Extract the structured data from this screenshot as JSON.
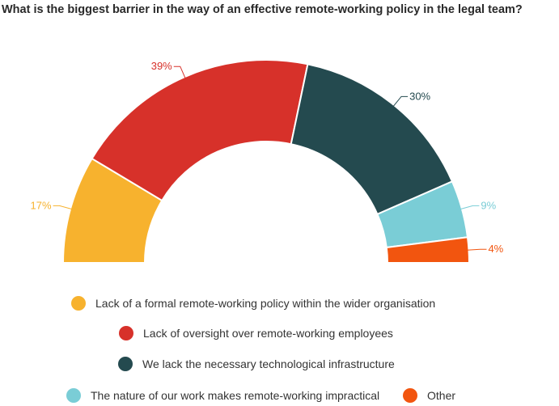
{
  "chart_data": {
    "type": "pie",
    "variant": "half-donut",
    "title": "What is the biggest barrier in the way of an effective remote-working policy in the legal team?",
    "slices": [
      {
        "label": "Lack of a formal remote-working policy within the wider organisation",
        "value": 17,
        "display": "17%",
        "color": "#F7B22E"
      },
      {
        "label": "Lack of oversight over remote-working employees",
        "value": 39,
        "display": "39%",
        "color": "#D7312A"
      },
      {
        "label": "We lack the necessary technological infrastructure",
        "value": 30,
        "display": "30%",
        "color": "#244A4F"
      },
      {
        "label": "The nature of our work makes remote-working impractical",
        "value": 9,
        "display": "9%",
        "color": "#7ACDD6"
      },
      {
        "label": "Other",
        "value": 4,
        "display": "4%",
        "color": "#F2550F"
      }
    ],
    "legend_position": "bottom"
  }
}
